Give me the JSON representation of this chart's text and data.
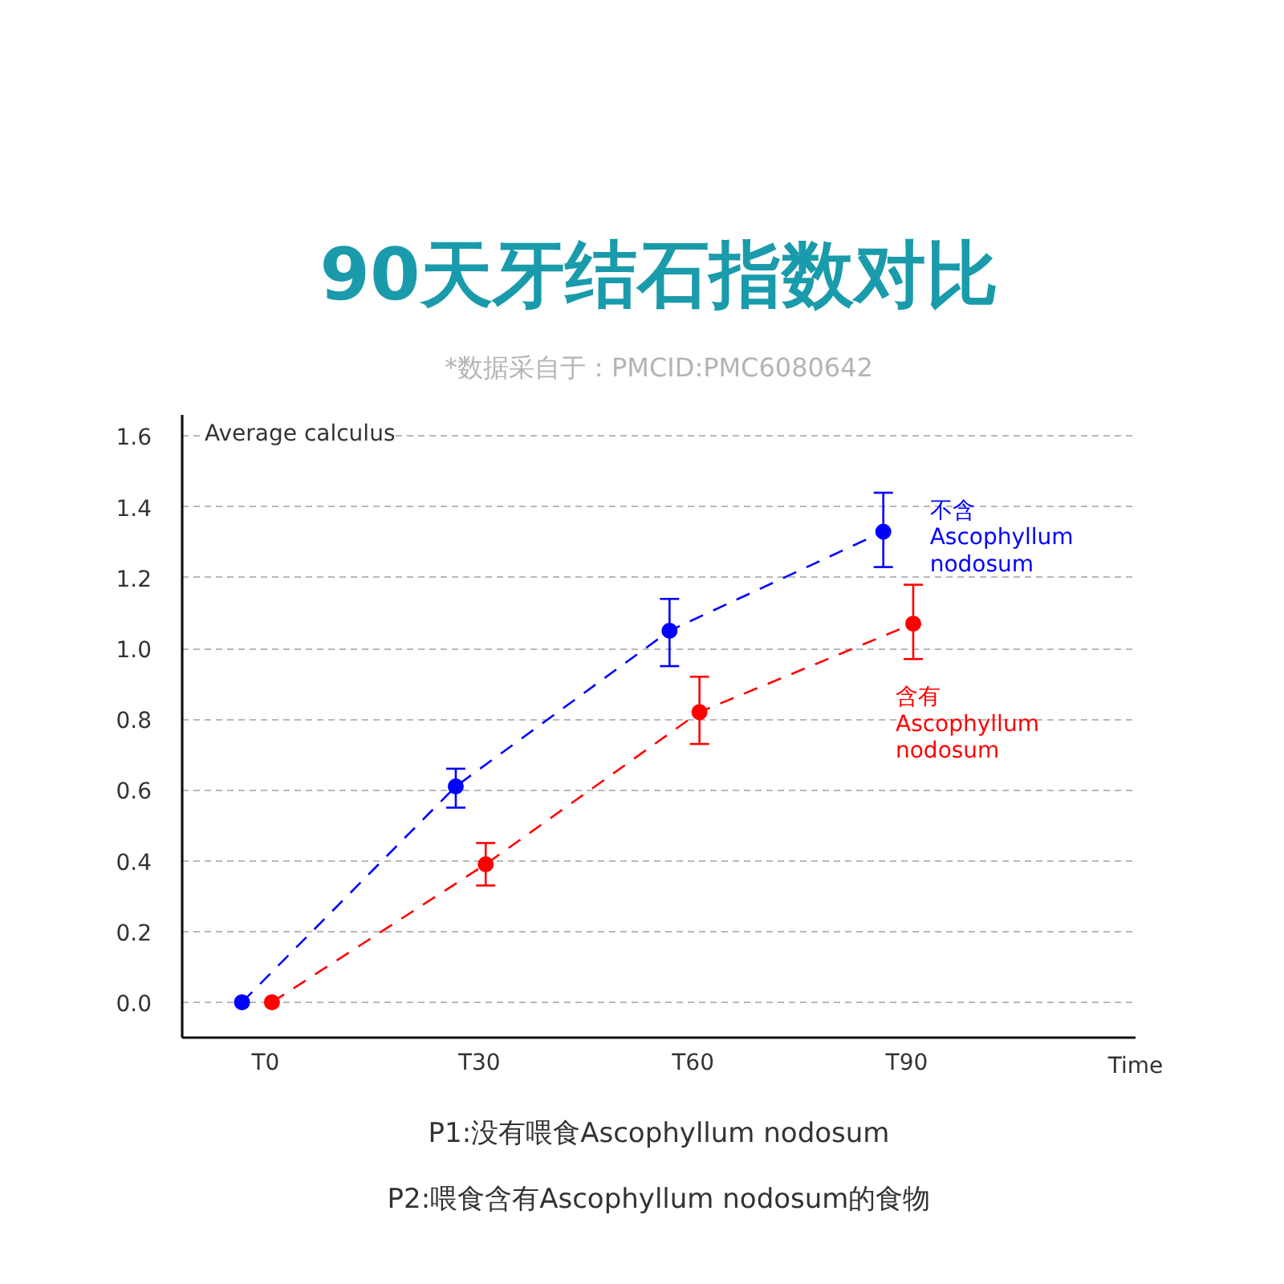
{
  "chart_data": {
    "type": "line",
    "title": "90天牙结石指数对比",
    "subtitle": "*数据采自于：PMCID:PMC6080642",
    "xlabel": "Time",
    "ylabel": "Average calculus",
    "categories": [
      "T0",
      "T30",
      "T60",
      "T90"
    ],
    "series": [
      {
        "name": "不含 Ascophyllum nodosum",
        "color": "#0000ff",
        "values": [
          0,
          0.61,
          1.05,
          1.33
        ],
        "errors": [
          null,
          [
            0.55,
            0.66
          ],
          [
            0.95,
            1.14
          ],
          [
            1.23,
            1.44
          ]
        ]
      },
      {
        "name": "含有 Ascophyllum nodosum",
        "color": "#ff0000",
        "values": [
          0,
          0.39,
          0.82,
          1.07
        ],
        "errors": [
          null,
          [
            0.33,
            0.45
          ],
          [
            0.73,
            0.92
          ],
          [
            0.97,
            1.18
          ]
        ]
      }
    ],
    "ylim": [
      -0.1,
      1.66
    ],
    "yticks": [
      {
        "value": 0,
        "label": "0.0"
      },
      0.2,
      0.4,
      0.6,
      0.8,
      {
        "value": 1,
        "label": "1.0"
      },
      1.2,
      1.4,
      1.6
    ],
    "grid": "y",
    "marker": "circle",
    "line_style": "dashed",
    "annotations": [
      "P1:没有喂食Ascophyllum nodosum",
      "P2:喂食含有Ascophyllum nodosum的食物"
    ]
  }
}
